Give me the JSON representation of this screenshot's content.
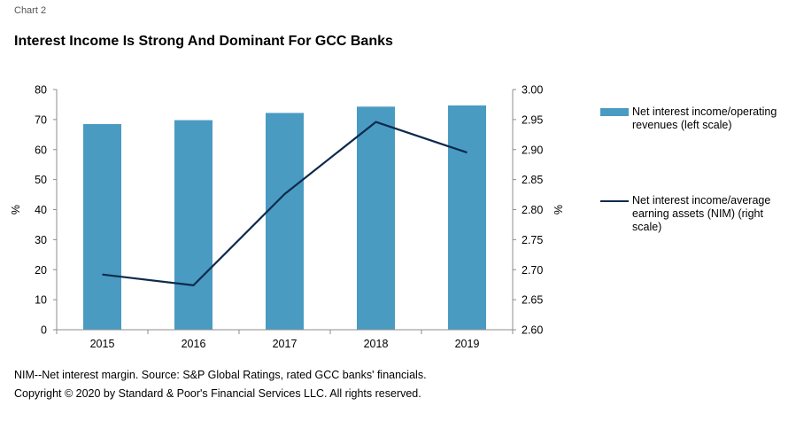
{
  "header": {
    "chart_number": "Chart 2",
    "title": "Interest Income Is Strong And Dominant For GCC Banks"
  },
  "footer": {
    "note": "NIM--Net interest margin. Source: S&P Global Ratings, rated GCC banks' financials.",
    "copyright": "Copyright © 2020 by Standard & Poor's Financial Services LLC. All rights reserved."
  },
  "colors": {
    "bar": "#4a9bc2",
    "line": "#0d2a4d",
    "axis": "#8c8c8c"
  },
  "chart_data": {
    "type": "bar",
    "categories": [
      "2015",
      "2016",
      "2017",
      "2018",
      "2019"
    ],
    "series": [
      {
        "name": "Net interest income/operating revenues (left scale)",
        "type": "bar",
        "axis": "left",
        "values": [
          68.5,
          69.8,
          72.2,
          74.3,
          74.7
        ]
      },
      {
        "name": "Net interest income/average earning assets (NIM) (right scale)",
        "type": "line",
        "axis": "right",
        "values": [
          2.692,
          2.674,
          2.826,
          2.946,
          2.895
        ]
      }
    ],
    "ylabel_left": "%",
    "ylabel_right": "%",
    "ylim_left": [
      0,
      80
    ],
    "ylim_right": [
      2.6,
      3.0
    ],
    "yticks_left": [
      "0",
      "10",
      "20",
      "30",
      "40",
      "50",
      "60",
      "70",
      "80"
    ],
    "yticks_right": [
      "2.60",
      "2.65",
      "2.70",
      "2.75",
      "2.80",
      "2.85",
      "2.90",
      "2.95",
      "3.00"
    ],
    "grid": false,
    "legend_position": "right"
  }
}
